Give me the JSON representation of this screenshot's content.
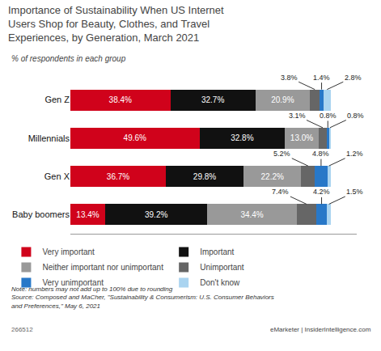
{
  "chart_data": {
    "type": "bar",
    "orientation": "horizontal",
    "stacked": true,
    "title": "Importance of Sustainability When US Internet\nUsers Shop for Beauty, Clothes, and Travel\nExperiences, by Generation, March 2021",
    "subtitle": "% of respondents in each group",
    "categories": [
      "Gen Z",
      "Millennials",
      "Gen X",
      "Baby boomers"
    ],
    "series": [
      {
        "name": "Very important",
        "color": "#d0021b",
        "values": [
          38.4,
          49.6,
          36.7,
          13.4
        ],
        "value_labels": [
          "38.4%",
          "49.6%",
          "36.7%",
          "13.4%"
        ]
      },
      {
        "name": "Important",
        "color": "#111111",
        "values": [
          32.7,
          32.8,
          29.8,
          39.2
        ],
        "value_labels": [
          "32.7%",
          "32.8%",
          "29.8%",
          "39.2%"
        ]
      },
      {
        "name": "Neither important nor unimportant",
        "color": "#999999",
        "values": [
          20.9,
          13.0,
          22.2,
          34.4
        ],
        "value_labels": [
          "20.9%",
          "13.0%",
          "22.2%",
          "34.4%"
        ]
      },
      {
        "name": "Unimportant",
        "color": "#666666",
        "values": [
          3.8,
          3.1,
          5.2,
          7.4
        ],
        "value_labels": [
          "3.8%",
          "3.1%",
          "5.2%",
          "7.4%"
        ]
      },
      {
        "name": "Very unimportant",
        "color": "#2878c8",
        "values": [
          1.4,
          0.8,
          4.8,
          4.2
        ],
        "value_labels": [
          "1.4%",
          "0.8%",
          "4.8%",
          "4.2%"
        ]
      },
      {
        "name": "Don't know",
        "color": "#aad4f0",
        "values": [
          2.8,
          0.8,
          1.2,
          1.5
        ],
        "value_labels": [
          "2.8%",
          "0.8%",
          "1.2%",
          "1.5%"
        ]
      }
    ],
    "xlim": [
      0,
      110
    ],
    "tick_labels": "y",
    "grid": false,
    "legend": "bottom",
    "data_labels": true,
    "annotations": [
      "Note: numbers may not add up to 100% due to rounding\nSource: Composed and MaCher, \"Sustainability & Consumerism: U.S. Consumer Behaviors\nand Preferences,\" May 6, 2021",
      "266512",
      "eMarketer | InsiderIntelligence.com"
    ]
  }
}
